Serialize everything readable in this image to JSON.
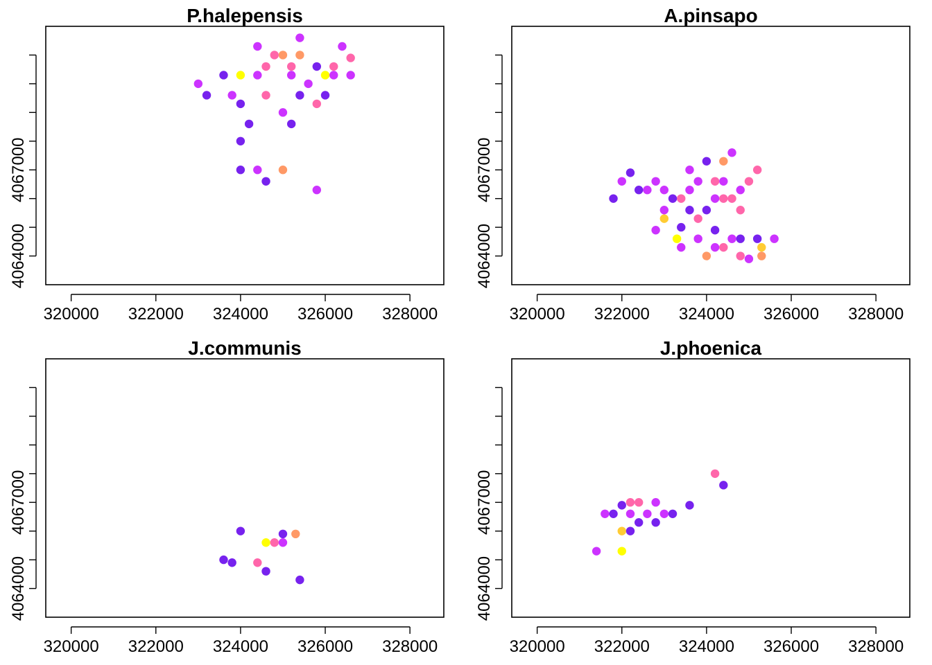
{
  "chart_data": [
    {
      "type": "scatter",
      "title": "P.halepensis",
      "x_ticks": [
        "320000",
        "322000",
        "324000",
        "326000",
        "328000"
      ],
      "y_ticks": [
        "4064000",
        "4067000"
      ],
      "xlim": [
        319400,
        328800
      ],
      "ylim": [
        4063000,
        4072000
      ],
      "base_color": "#0000aa",
      "highlights": [
        {
          "x": 324000,
          "y": 4070300,
          "color": "#ffff00"
        },
        {
          "x": 326000,
          "y": 4070300,
          "color": "#ffff00"
        },
        {
          "x": 325000,
          "y": 4071000,
          "color": "#ff9966"
        },
        {
          "x": 325400,
          "y": 4071000,
          "color": "#ff9966"
        },
        {
          "x": 325000,
          "y": 4067000,
          "color": "#ff9966"
        },
        {
          "x": 324600,
          "y": 4070600,
          "color": "#ff66aa"
        },
        {
          "x": 325200,
          "y": 4070600,
          "color": "#ff66aa"
        },
        {
          "x": 326200,
          "y": 4070600,
          "color": "#ff66aa"
        },
        {
          "x": 324600,
          "y": 4069600,
          "color": "#ff66aa"
        },
        {
          "x": 325800,
          "y": 4069300,
          "color": "#ff66aa"
        },
        {
          "x": 324800,
          "y": 4071000,
          "color": "#ff66aa"
        },
        {
          "x": 326600,
          "y": 4070900,
          "color": "#ff66aa"
        },
        {
          "x": 324400,
          "y": 4070300,
          "color": "#cc33ff"
        },
        {
          "x": 324400,
          "y": 4071300,
          "color": "#cc33ff"
        },
        {
          "x": 325200,
          "y": 4070300,
          "color": "#cc33ff"
        },
        {
          "x": 325600,
          "y": 4070000,
          "color": "#cc33ff"
        },
        {
          "x": 326200,
          "y": 4070300,
          "color": "#cc33ff"
        },
        {
          "x": 326600,
          "y": 4070300,
          "color": "#cc33ff"
        },
        {
          "x": 323000,
          "y": 4070000,
          "color": "#cc33ff"
        },
        {
          "x": 325000,
          "y": 4069000,
          "color": "#cc33ff"
        },
        {
          "x": 325800,
          "y": 4066300,
          "color": "#cc33ff"
        },
        {
          "x": 324400,
          "y": 4067000,
          "color": "#cc33ff"
        },
        {
          "x": 323800,
          "y": 4069600,
          "color": "#cc33ff"
        },
        {
          "x": 325400,
          "y": 4071600,
          "color": "#cc33ff"
        },
        {
          "x": 326400,
          "y": 4071300,
          "color": "#cc33ff"
        },
        {
          "x": 323200,
          "y": 4069600,
          "color": "#7722ee"
        },
        {
          "x": 324000,
          "y": 4069300,
          "color": "#7722ee"
        },
        {
          "x": 324600,
          "y": 4066600,
          "color": "#7722ee"
        },
        {
          "x": 325400,
          "y": 4069600,
          "color": "#7722ee"
        },
        {
          "x": 326000,
          "y": 4069600,
          "color": "#7722ee"
        },
        {
          "x": 324200,
          "y": 4068600,
          "color": "#7722ee"
        },
        {
          "x": 325200,
          "y": 4068600,
          "color": "#7722ee"
        },
        {
          "x": 323600,
          "y": 4070300,
          "color": "#7722ee"
        },
        {
          "x": 325800,
          "y": 4070600,
          "color": "#7722ee"
        },
        {
          "x": 324000,
          "y": 4067000,
          "color": "#7722ee"
        },
        {
          "x": 324000,
          "y": 4068000,
          "color": "#7722ee"
        }
      ]
    },
    {
      "type": "scatter",
      "title": "A.pinsapo",
      "x_ticks": [
        "320000",
        "322000",
        "324000",
        "326000",
        "328000"
      ],
      "y_ticks": [
        "4064000",
        "4067000"
      ],
      "xlim": [
        319400,
        328800
      ],
      "ylim": [
        4063000,
        4072000
      ],
      "base_color": "#0000aa",
      "highlights": [
        {
          "x": 323300,
          "y": 4064600,
          "color": "#ffff00"
        },
        {
          "x": 323000,
          "y": 4065300,
          "color": "#ffcc33"
        },
        {
          "x": 325300,
          "y": 4064300,
          "color": "#ffcc33"
        },
        {
          "x": 324400,
          "y": 4067300,
          "color": "#ff9966"
        },
        {
          "x": 324000,
          "y": 4064000,
          "color": "#ff9966"
        },
        {
          "x": 325300,
          "y": 4064000,
          "color": "#ff9966"
        },
        {
          "x": 324600,
          "y": 4066000,
          "color": "#ff66aa"
        },
        {
          "x": 324400,
          "y": 4066000,
          "color": "#ff66aa"
        },
        {
          "x": 324200,
          "y": 4066600,
          "color": "#ff66aa"
        },
        {
          "x": 323800,
          "y": 4065300,
          "color": "#ff66aa"
        },
        {
          "x": 323400,
          "y": 4066000,
          "color": "#ff66aa"
        },
        {
          "x": 324800,
          "y": 4064000,
          "color": "#ff66aa"
        },
        {
          "x": 324400,
          "y": 4064300,
          "color": "#ff66aa"
        },
        {
          "x": 325000,
          "y": 4066600,
          "color": "#ff66aa"
        },
        {
          "x": 325200,
          "y": 4067000,
          "color": "#ff66aa"
        },
        {
          "x": 324800,
          "y": 4065600,
          "color": "#ff66aa"
        },
        {
          "x": 322600,
          "y": 4066300,
          "color": "#cc33ff"
        },
        {
          "x": 322800,
          "y": 4066600,
          "color": "#cc33ff"
        },
        {
          "x": 323000,
          "y": 4066300,
          "color": "#cc33ff"
        },
        {
          "x": 322000,
          "y": 4066600,
          "color": "#cc33ff"
        },
        {
          "x": 323600,
          "y": 4066300,
          "color": "#cc33ff"
        },
        {
          "x": 324200,
          "y": 4066000,
          "color": "#cc33ff"
        },
        {
          "x": 323800,
          "y": 4066600,
          "color": "#cc33ff"
        },
        {
          "x": 323000,
          "y": 4065600,
          "color": "#cc33ff"
        },
        {
          "x": 323400,
          "y": 4064300,
          "color": "#cc33ff"
        },
        {
          "x": 323800,
          "y": 4064600,
          "color": "#cc33ff"
        },
        {
          "x": 324200,
          "y": 4064300,
          "color": "#cc33ff"
        },
        {
          "x": 324600,
          "y": 4064600,
          "color": "#cc33ff"
        },
        {
          "x": 325600,
          "y": 4064600,
          "color": "#cc33ff"
        },
        {
          "x": 325000,
          "y": 4063900,
          "color": "#cc33ff"
        },
        {
          "x": 322800,
          "y": 4064900,
          "color": "#cc33ff"
        },
        {
          "x": 323600,
          "y": 4067000,
          "color": "#cc33ff"
        },
        {
          "x": 324400,
          "y": 4066600,
          "color": "#cc33ff"
        },
        {
          "x": 324800,
          "y": 4066300,
          "color": "#cc33ff"
        },
        {
          "x": 324600,
          "y": 4067600,
          "color": "#cc33ff"
        },
        {
          "x": 322400,
          "y": 4066300,
          "color": "#7722ee"
        },
        {
          "x": 321800,
          "y": 4066000,
          "color": "#7722ee"
        },
        {
          "x": 323200,
          "y": 4066000,
          "color": "#7722ee"
        },
        {
          "x": 324000,
          "y": 4065600,
          "color": "#7722ee"
        },
        {
          "x": 322200,
          "y": 4066900,
          "color": "#7722ee"
        },
        {
          "x": 323400,
          "y": 4065000,
          "color": "#7722ee"
        },
        {
          "x": 324200,
          "y": 4064900,
          "color": "#7722ee"
        },
        {
          "x": 324800,
          "y": 4064600,
          "color": "#7722ee"
        },
        {
          "x": 325200,
          "y": 4064600,
          "color": "#7722ee"
        },
        {
          "x": 323600,
          "y": 4065600,
          "color": "#7722ee"
        },
        {
          "x": 324000,
          "y": 4067300,
          "color": "#7722ee"
        }
      ]
    },
    {
      "type": "scatter",
      "title": "J.communis",
      "x_ticks": [
        "320000",
        "322000",
        "324000",
        "326000",
        "328000"
      ],
      "y_ticks": [
        "4064000",
        "4067000"
      ],
      "xlim": [
        319400,
        328800
      ],
      "ylim": [
        4063000,
        4072000
      ],
      "base_color": "#0000aa",
      "highlights": [
        {
          "x": 324600,
          "y": 4065600,
          "color": "#ffff00"
        },
        {
          "x": 325300,
          "y": 4065900,
          "color": "#ff9966"
        },
        {
          "x": 324800,
          "y": 4065600,
          "color": "#ff66aa"
        },
        {
          "x": 324400,
          "y": 4064900,
          "color": "#ff66aa"
        },
        {
          "x": 325000,
          "y": 4065600,
          "color": "#cc33ff"
        },
        {
          "x": 325000,
          "y": 4065900,
          "color": "#7722ee"
        },
        {
          "x": 324600,
          "y": 4064600,
          "color": "#7722ee"
        },
        {
          "x": 323800,
          "y": 4064900,
          "color": "#7722ee"
        },
        {
          "x": 325400,
          "y": 4064300,
          "color": "#7722ee"
        },
        {
          "x": 324000,
          "y": 4066000,
          "color": "#7722ee"
        },
        {
          "x": 323600,
          "y": 4065000,
          "color": "#7722ee"
        }
      ]
    },
    {
      "type": "scatter",
      "title": "J.phoenica",
      "x_ticks": [
        "320000",
        "322000",
        "324000",
        "326000",
        "328000"
      ],
      "y_ticks": [
        "4064000",
        "4067000"
      ],
      "xlim": [
        319400,
        328800
      ],
      "ylim": [
        4063000,
        4072000
      ],
      "base_color": "#0000aa",
      "highlights": [
        {
          "x": 322000,
          "y": 4065300,
          "color": "#ffff00"
        },
        {
          "x": 322000,
          "y": 4066000,
          "color": "#ffcc33"
        },
        {
          "x": 322200,
          "y": 4067000,
          "color": "#ff66aa"
        },
        {
          "x": 324200,
          "y": 4068000,
          "color": "#ff66aa"
        },
        {
          "x": 322400,
          "y": 4067000,
          "color": "#ff66aa"
        },
        {
          "x": 322600,
          "y": 4066600,
          "color": "#cc33ff"
        },
        {
          "x": 322200,
          "y": 4066600,
          "color": "#cc33ff"
        },
        {
          "x": 321600,
          "y": 4066600,
          "color": "#cc33ff"
        },
        {
          "x": 321400,
          "y": 4065300,
          "color": "#cc33ff"
        },
        {
          "x": 322800,
          "y": 4067000,
          "color": "#cc33ff"
        },
        {
          "x": 323000,
          "y": 4066600,
          "color": "#cc33ff"
        },
        {
          "x": 322000,
          "y": 4066900,
          "color": "#7722ee"
        },
        {
          "x": 322400,
          "y": 4066300,
          "color": "#7722ee"
        },
        {
          "x": 321800,
          "y": 4066600,
          "color": "#7722ee"
        },
        {
          "x": 323200,
          "y": 4066600,
          "color": "#7722ee"
        },
        {
          "x": 324400,
          "y": 4067600,
          "color": "#7722ee"
        },
        {
          "x": 322800,
          "y": 4066300,
          "color": "#7722ee"
        },
        {
          "x": 322200,
          "y": 4066000,
          "color": "#7722ee"
        },
        {
          "x": 323600,
          "y": 4066900,
          "color": "#7722ee"
        }
      ]
    }
  ]
}
